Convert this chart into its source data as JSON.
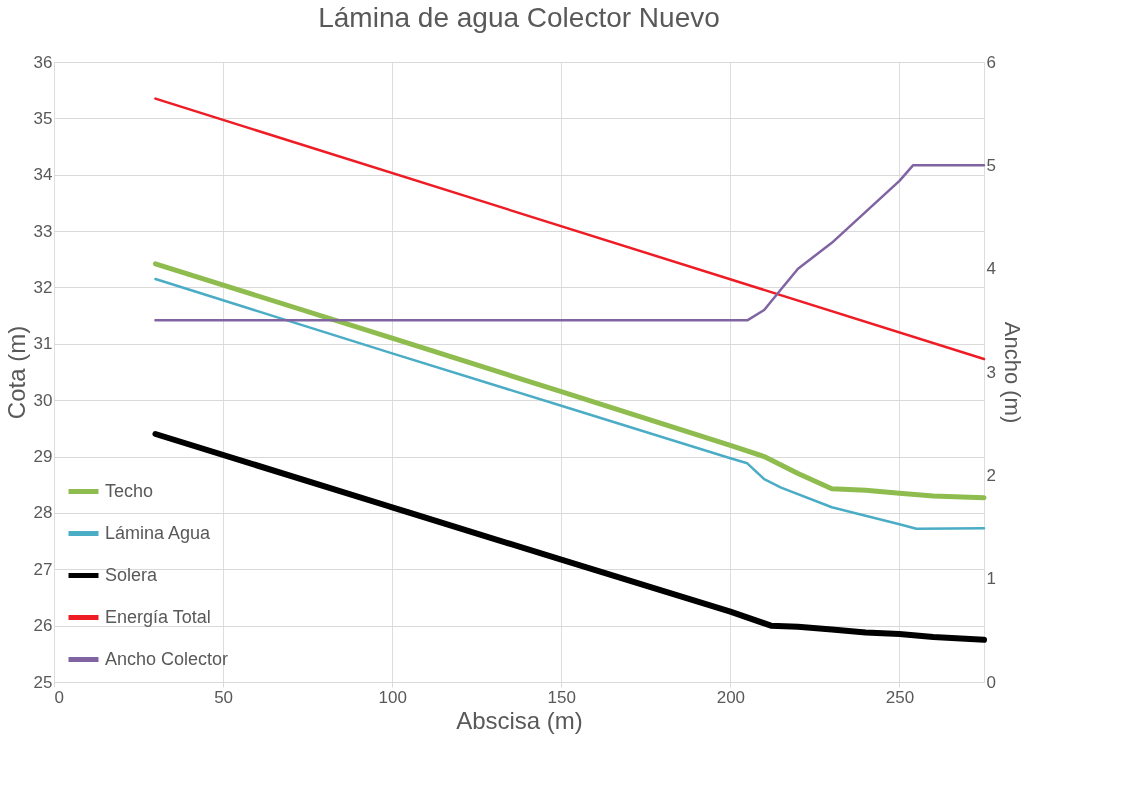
{
  "chart_data": {
    "type": "line",
    "title": "Lámina de agua Colector Nuevo",
    "xlabel": "Abscisa (m)",
    "ylabel": "Cota (m)",
    "y2label": "Ancho (m)",
    "xlim": [
      0,
      275
    ],
    "xticks": [
      0,
      50,
      100,
      150,
      200,
      250
    ],
    "ylim": [
      25,
      36
    ],
    "yticks": [
      25,
      26,
      27,
      28,
      29,
      30,
      31,
      32,
      33,
      34,
      35,
      36
    ],
    "y2lim": [
      0,
      6
    ],
    "y2ticks": [
      0,
      1,
      2,
      3,
      4,
      5,
      6
    ],
    "grid": true,
    "legend": "bottom left",
    "marker": "none",
    "line_style": "solid",
    "series": [
      {
        "name": "Techo",
        "color": "#8fbc4f",
        "x": [
          30,
          100,
          150,
          200,
          210,
          220,
          230,
          240,
          250,
          260,
          275
        ],
        "values": [
          32.42,
          31.1,
          30.15,
          29.2,
          29.0,
          28.7,
          28.43,
          28.4,
          28.35,
          28.3,
          28.27
        ]
      },
      {
        "name": "Lámina Agua",
        "color": "#4bacc6",
        "x": [
          30,
          100,
          150,
          200,
          205,
          210,
          215,
          230,
          250,
          255,
          275
        ],
        "values": [
          32.15,
          30.83,
          29.9,
          28.97,
          28.88,
          28.6,
          28.45,
          28.1,
          27.8,
          27.72,
          27.73
        ]
      },
      {
        "name": "Solera",
        "color": "#000000",
        "x": [
          30,
          100,
          150,
          200,
          212,
          220,
          230,
          240,
          250,
          260,
          275
        ],
        "values": [
          29.4,
          28.1,
          27.17,
          26.25,
          26.0,
          25.98,
          25.93,
          25.88,
          25.85,
          25.8,
          25.75
        ]
      },
      {
        "name": "Energía Total",
        "color": "#ee1c25",
        "x": [
          30,
          275
        ],
        "values": [
          35.35,
          30.73
        ]
      },
      {
        "name": "Ancho Colector",
        "color": "#8064a2",
        "axis": "y2",
        "x": [
          30,
          205,
          210,
          215,
          220,
          230,
          240,
          250,
          254,
          275
        ],
        "values": [
          3.5,
          3.5,
          3.6,
          3.8,
          4.0,
          4.25,
          4.55,
          4.85,
          5.0,
          5.0
        ]
      }
    ]
  }
}
